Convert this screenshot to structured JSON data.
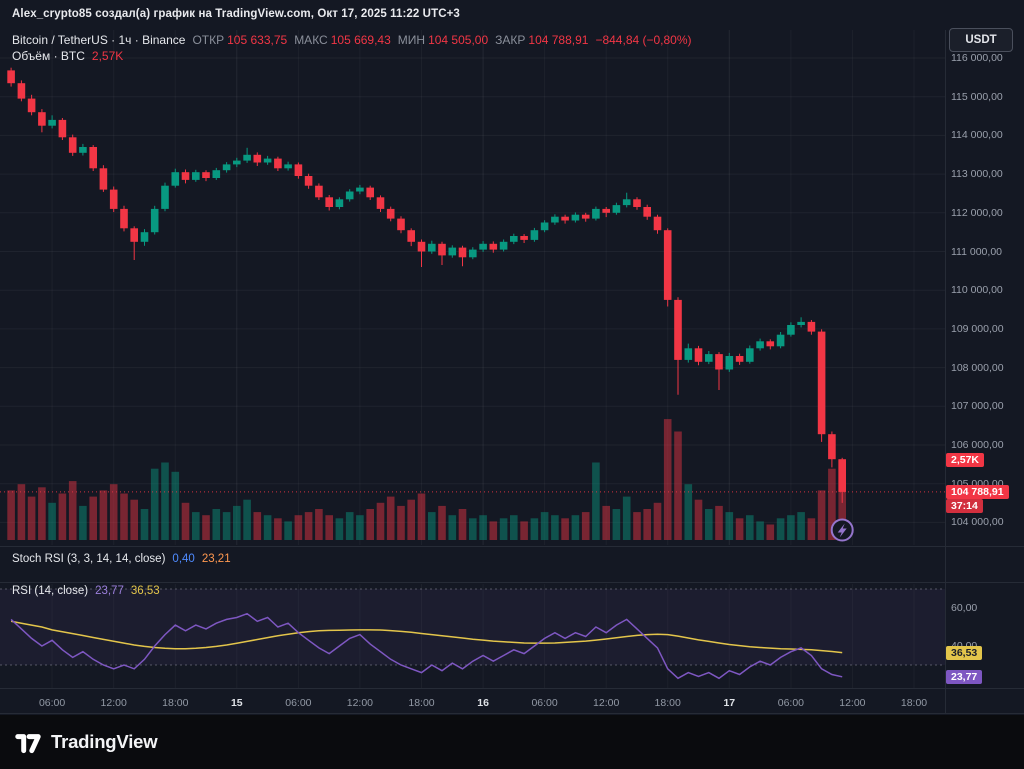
{
  "attribution": {
    "text": "Alex_crypto85 создал(а) график на TradingView.com, Окт 17, 2025 11:22 UTC+3"
  },
  "currency_button": {
    "label": "USDT"
  },
  "symbol_legend": {
    "title": "Bitcoin / TetherUS · 1ч · Binance",
    "fields": [
      {
        "label": "ОТКР",
        "value": "105 633,75"
      },
      {
        "label": "МАКС",
        "value": "105 669,43"
      },
      {
        "label": "МИН",
        "value": "104 505,00"
      },
      {
        "label": "ЗАКР",
        "value": "104 788,91"
      }
    ],
    "change": "−844,84 (−0,80%)"
  },
  "volume_legend": {
    "title": "Объём · BTC",
    "value": "2,57K"
  },
  "stoch_legend": {
    "title": "Stoch RSI (3, 3, 14, 14, close)",
    "k": "0,40",
    "d": "23,21"
  },
  "rsi_legend": {
    "title": "RSI (14, close)",
    "rsi": "23,77",
    "ma": "36,53"
  },
  "price_axis": {
    "labels": [
      {
        "text": "116 000,00",
        "value": 116000
      },
      {
        "text": "115 000,00",
        "value": 115000
      },
      {
        "text": "114 000,00",
        "value": 114000
      },
      {
        "text": "113 000,00",
        "value": 113000
      },
      {
        "text": "112 000,00",
        "value": 112000
      },
      {
        "text": "111 000,00",
        "value": 111000
      },
      {
        "text": "110 000,00",
        "value": 110000
      },
      {
        "text": "109 000,00",
        "value": 109000
      },
      {
        "text": "108 000,00",
        "value": 108000
      },
      {
        "text": "107 000,00",
        "value": 107000
      },
      {
        "text": "106 000,00",
        "value": 106000
      },
      {
        "text": "105 000,00",
        "value": 105000
      },
      {
        "text": "104 000,00",
        "value": 104000
      }
    ],
    "badges": {
      "volume": {
        "text": "2,57K",
        "value": 2.57
      },
      "price": {
        "text": "104 788,91",
        "value": 104788.91
      },
      "countdown": {
        "text": "37:14"
      }
    }
  },
  "rsi_axis": {
    "labels": [
      {
        "text": "60,00",
        "value": 60
      },
      {
        "text": "40,00",
        "value": 40
      }
    ],
    "badges": [
      {
        "text": "36,53",
        "value": 36.53,
        "bg": "#e3c54b",
        "fg": "#1b1f2a"
      },
      {
        "text": "23,77",
        "value": 23.77,
        "bg": "#7e57c2",
        "fg": "#ffffff"
      }
    ]
  },
  "time_axis": {
    "ticks": [
      {
        "label": "06:00",
        "index": 4,
        "major": false
      },
      {
        "label": "12:00",
        "index": 10,
        "major": false
      },
      {
        "label": "18:00",
        "index": 16,
        "major": false
      },
      {
        "label": "15",
        "index": 22,
        "major": true
      },
      {
        "label": "06:00",
        "index": 28,
        "major": false
      },
      {
        "label": "12:00",
        "index": 34,
        "major": false
      },
      {
        "label": "18:00",
        "index": 40,
        "major": false
      },
      {
        "label": "16",
        "index": 46,
        "major": true
      },
      {
        "label": "06:00",
        "index": 52,
        "major": false
      },
      {
        "label": "12:00",
        "index": 58,
        "major": false
      },
      {
        "label": "18:00",
        "index": 64,
        "major": false
      },
      {
        "label": "17",
        "index": 70,
        "major": true
      },
      {
        "label": "06:00",
        "index": 76,
        "major": false
      },
      {
        "label": "12:00",
        "index": 82,
        "major": false
      },
      {
        "label": "18:00",
        "index": 88,
        "major": false
      }
    ]
  },
  "footer": {
    "brand": "TradingView"
  },
  "colors": {
    "up": "#089981",
    "down": "#f23645",
    "rsi": "#9b7fdb",
    "rsi_line": "#7e57c2",
    "rsi_ma": "#e3c54b",
    "stoch_k": "#4f8bff",
    "stoch_d": "#ff9850",
    "countdown_badge": "#d22f3e",
    "marker": "#9575cd"
  },
  "chart_data": {
    "type": "candlestick",
    "title": "Bitcoin / TetherUS",
    "interval": "1h",
    "exchange": "Binance",
    "quote": "USDT",
    "ohlc": {
      "open": 105633.75,
      "high": 105669.43,
      "low": 104505.0,
      "close": 104788.91,
      "change": -844.84,
      "change_pct": -0.8
    },
    "current_volume_k": 2.57,
    "price_range_visible": [
      103800,
      116500
    ],
    "candles": [
      [
        115680,
        115750,
        115260,
        115350
      ],
      [
        115350,
        115420,
        114880,
        114950
      ],
      [
        114950,
        115050,
        114520,
        114600
      ],
      [
        114600,
        114680,
        114080,
        114250
      ],
      [
        114250,
        114520,
        114180,
        114400
      ],
      [
        114400,
        114450,
        113880,
        113950
      ],
      [
        113950,
        114020,
        113470,
        113550
      ],
      [
        113550,
        113780,
        113480,
        113700
      ],
      [
        113700,
        113750,
        113080,
        113150
      ],
      [
        113150,
        113230,
        112540,
        112600
      ],
      [
        112600,
        112680,
        112020,
        112100
      ],
      [
        112100,
        112180,
        111520,
        111600
      ],
      [
        111600,
        111650,
        110780,
        111250
      ],
      [
        111250,
        111580,
        111150,
        111500
      ],
      [
        111500,
        112180,
        111440,
        112100
      ],
      [
        112100,
        112780,
        112040,
        112700
      ],
      [
        112700,
        113140,
        112650,
        113050
      ],
      [
        113050,
        113120,
        112760,
        112850
      ],
      [
        112850,
        113110,
        112800,
        113050
      ],
      [
        113050,
        113100,
        112820,
        112900
      ],
      [
        112900,
        113160,
        112850,
        113100
      ],
      [
        113100,
        113310,
        113040,
        113250
      ],
      [
        113250,
        113420,
        113180,
        113350
      ],
      [
        113350,
        113680,
        113290,
        113500
      ],
      [
        113500,
        113560,
        113210,
        113300
      ],
      [
        113300,
        113470,
        113240,
        113400
      ],
      [
        113400,
        113450,
        113080,
        113150
      ],
      [
        113150,
        113320,
        113090,
        113250
      ],
      [
        113250,
        113300,
        112880,
        112950
      ],
      [
        112950,
        113010,
        112620,
        112700
      ],
      [
        112700,
        112760,
        112330,
        112400
      ],
      [
        112400,
        112460,
        112060,
        112150
      ],
      [
        112150,
        112400,
        112090,
        112350
      ],
      [
        112350,
        112610,
        112290,
        112550
      ],
      [
        112550,
        112720,
        112480,
        112650
      ],
      [
        112650,
        112700,
        112330,
        112400
      ],
      [
        112400,
        112450,
        112020,
        112100
      ],
      [
        112100,
        112160,
        111780,
        111850
      ],
      [
        111850,
        111910,
        111470,
        111550
      ],
      [
        111550,
        111600,
        111140,
        111250
      ],
      [
        111250,
        111310,
        110600,
        111000
      ],
      [
        111000,
        111280,
        110940,
        111200
      ],
      [
        111200,
        111250,
        110650,
        110900
      ],
      [
        110900,
        111160,
        110840,
        111100
      ],
      [
        111100,
        111150,
        110620,
        110850
      ],
      [
        110850,
        111110,
        110800,
        111050
      ],
      [
        111050,
        111270,
        110990,
        111200
      ],
      [
        111200,
        111260,
        110970,
        111050
      ],
      [
        111050,
        111310,
        111000,
        111250
      ],
      [
        111250,
        111460,
        111190,
        111400
      ],
      [
        111400,
        111450,
        111220,
        111300
      ],
      [
        111300,
        111610,
        111250,
        111550
      ],
      [
        111550,
        111810,
        111500,
        111750
      ],
      [
        111750,
        111960,
        111690,
        111900
      ],
      [
        111900,
        111950,
        111720,
        111800
      ],
      [
        111800,
        112010,
        111750,
        111950
      ],
      [
        111950,
        112000,
        111770,
        111850
      ],
      [
        111850,
        112160,
        111800,
        112100
      ],
      [
        112100,
        112150,
        111890,
        112000
      ],
      [
        112000,
        112260,
        111950,
        112200
      ],
      [
        112200,
        112520,
        112140,
        112350
      ],
      [
        112350,
        112400,
        112080,
        112150
      ],
      [
        112150,
        112210,
        111820,
        111900
      ],
      [
        111900,
        111950,
        111460,
        111550
      ],
      [
        111550,
        111600,
        109580,
        109750
      ],
      [
        109750,
        109820,
        107300,
        108200
      ],
      [
        108200,
        108620,
        108130,
        108500
      ],
      [
        108500,
        108560,
        108060,
        108150
      ],
      [
        108150,
        108430,
        108090,
        108350
      ],
      [
        108350,
        108400,
        107420,
        107950
      ],
      [
        107950,
        108380,
        107890,
        108300
      ],
      [
        108300,
        108360,
        108070,
        108150
      ],
      [
        108150,
        108570,
        108100,
        108500
      ],
      [
        108500,
        108750,
        108440,
        108680
      ],
      [
        108680,
        108730,
        108470,
        108550
      ],
      [
        108550,
        108920,
        108500,
        108850
      ],
      [
        108850,
        109170,
        108800,
        109100
      ],
      [
        109100,
        109300,
        109040,
        109180
      ],
      [
        109180,
        109230,
        108850,
        108930
      ],
      [
        108930,
        108990,
        106080,
        106280
      ],
      [
        106280,
        106350,
        105420,
        105633.75
      ],
      [
        105633.75,
        105669.43,
        104505,
        104788.91
      ]
    ],
    "volumes_k": [
      1.6,
      1.8,
      1.4,
      1.7,
      1.2,
      1.5,
      1.9,
      1.1,
      1.4,
      1.6,
      1.8,
      1.5,
      1.3,
      1.0,
      2.3,
      2.5,
      2.2,
      1.2,
      0.9,
      0.8,
      1.0,
      0.9,
      1.1,
      1.3,
      0.9,
      0.8,
      0.7,
      0.6,
      0.8,
      0.9,
      1.0,
      0.8,
      0.7,
      0.9,
      0.8,
      1.0,
      1.2,
      1.4,
      1.1,
      1.3,
      1.5,
      0.9,
      1.1,
      0.8,
      1.0,
      0.7,
      0.8,
      0.6,
      0.7,
      0.8,
      0.6,
      0.7,
      0.9,
      0.8,
      0.7,
      0.8,
      0.9,
      2.5,
      1.1,
      1.0,
      1.4,
      0.9,
      1.0,
      1.2,
      3.9,
      3.5,
      1.8,
      1.3,
      1.0,
      1.1,
      0.9,
      0.7,
      0.8,
      0.6,
      0.5,
      0.7,
      0.8,
      0.9,
      0.7,
      1.6,
      2.3,
      2.57
    ],
    "indicators": {
      "stoch_rsi": {
        "params": "3, 3, 14, 14, close",
        "k": 0.4,
        "d": 23.21
      },
      "rsi": {
        "params": "14, close",
        "current": 23.77,
        "ma_current": 36.53,
        "levels": [
          70,
          30
        ],
        "values": [
          54,
          49,
          44,
          40,
          43,
          38,
          34,
          37,
          33,
          30,
          28,
          30,
          28,
          33,
          40,
          46,
          51,
          48,
          51,
          49,
          52,
          54,
          55,
          57,
          53,
          55,
          50,
          52,
          47,
          43,
          39,
          36,
          40,
          44,
          46,
          41,
          37,
          33,
          30,
          28,
          26,
          30,
          27,
          31,
          28,
          32,
          35,
          32,
          35,
          38,
          36,
          40,
          44,
          47,
          44,
          47,
          45,
          50,
          47,
          51,
          54,
          49,
          44,
          39,
          28,
          23,
          26,
          24,
          26,
          23,
          27,
          25,
          29,
          32,
          30,
          34,
          37,
          39,
          35,
          28,
          25,
          23.77
        ],
        "ma_values": [
          53,
          52,
          51,
          50,
          48.5,
          47.5,
          46.5,
          45.5,
          44.5,
          43.5,
          42.5,
          41.5,
          40.5,
          39.8,
          39.2,
          38.8,
          38.6,
          38.6,
          38.8,
          39.2,
          39.8,
          40.5,
          41.4,
          42.4,
          43.4,
          44.4,
          45.4,
          46.2,
          47,
          47.6,
          48,
          48.2,
          48.3,
          48.4,
          48.5,
          48.5,
          48.4,
          48.1,
          47.7,
          47.2,
          46.6,
          46,
          45.4,
          44.8,
          44.2,
          43.6,
          43.1,
          42.6,
          42.2,
          41.9,
          41.6,
          41.5,
          41.5,
          41.6,
          41.9,
          42.2,
          42.6,
          43.1,
          43.7,
          44.3,
          45,
          45.6,
          46,
          46.2,
          46,
          45.2,
          44.2,
          43.2,
          42.4,
          41.6,
          40.8,
          40.2,
          39.6,
          39.2,
          38.9,
          38.6,
          38.4,
          38.2,
          38,
          37.6,
          37.1,
          36.53
        ]
      }
    }
  }
}
